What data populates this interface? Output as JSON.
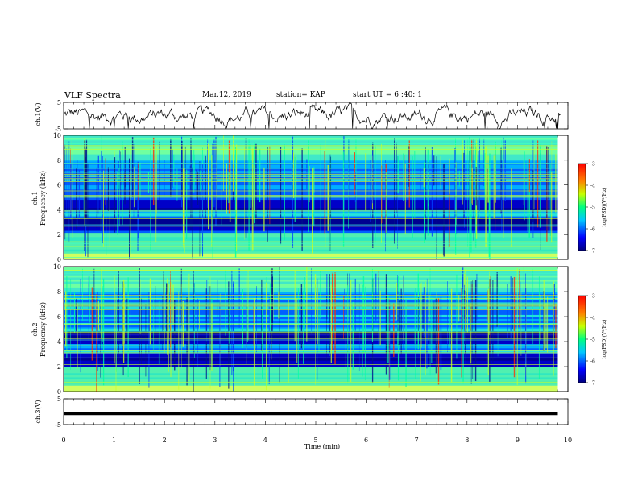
{
  "header": {
    "title": "VLF Spectra",
    "date": "Mar.12, 2019",
    "station": "station= KAP",
    "start_time": "start UT = 6 :40: 1"
  },
  "colors": {
    "spectrum_low": "#00007f",
    "spectrum_mid": "#00ff80",
    "spectrum_high": "#ff0000"
  },
  "chart_data": [
    {
      "type": "line",
      "panel": "ch1_waveform",
      "ylabel": "ch.1(V)",
      "ylim": [
        -5,
        5
      ],
      "yticks": [
        "5",
        "-5"
      ],
      "xlim": [
        0,
        10
      ],
      "series": [
        {
          "mean": 0,
          "amplitude": 2.2
        }
      ]
    },
    {
      "type": "heatmap",
      "panel": "ch1_spectrogram",
      "ylabel": "ch.1\nFrequency (kHz)",
      "ylim": [
        0,
        10
      ],
      "yticks": [
        "0",
        "2",
        "4",
        "6",
        "8",
        "10"
      ],
      "xlim": [
        0,
        9.8
      ],
      "dark_bands_khz": [
        [
          2.4,
          3.4
        ],
        [
          4.0,
          4.9
        ]
      ],
      "colorbar": {
        "label": "log(PSD)(V²/Hz)",
        "ticks": [
          "-3",
          "-4",
          "-5",
          "-6",
          "-7"
        ],
        "range": [
          -7,
          -3
        ]
      }
    },
    {
      "type": "heatmap",
      "panel": "ch2_spectrogram",
      "ylabel": "ch.2\nFrequency (kHz)",
      "ylim": [
        0,
        10
      ],
      "yticks": [
        "0",
        "2",
        "4",
        "6",
        "8",
        "10"
      ],
      "xlim": [
        0,
        9.8
      ],
      "dark_bands_khz": [
        [
          2.0,
          3.0
        ],
        [
          3.8,
          4.8
        ]
      ],
      "colorbar": {
        "label": "log(PSD)(V²/Hz)",
        "ticks": [
          "-3",
          "-4",
          "-5",
          "-6",
          "-7"
        ],
        "range": [
          -7,
          -3
        ]
      }
    },
    {
      "type": "line",
      "panel": "ch3_waveform",
      "ylabel": "ch.3(V)",
      "ylim": [
        -5,
        5
      ],
      "yticks": [
        "5",
        "-5"
      ],
      "xlim": [
        0,
        9.8
      ],
      "series": [
        {
          "constant": -0.8
        }
      ]
    }
  ],
  "xaxis": {
    "label": "Time (min)",
    "ticks": [
      "0",
      "1",
      "2",
      "3",
      "4",
      "5",
      "6",
      "7",
      "8",
      "9",
      "10"
    ],
    "range": [
      0,
      10
    ]
  }
}
